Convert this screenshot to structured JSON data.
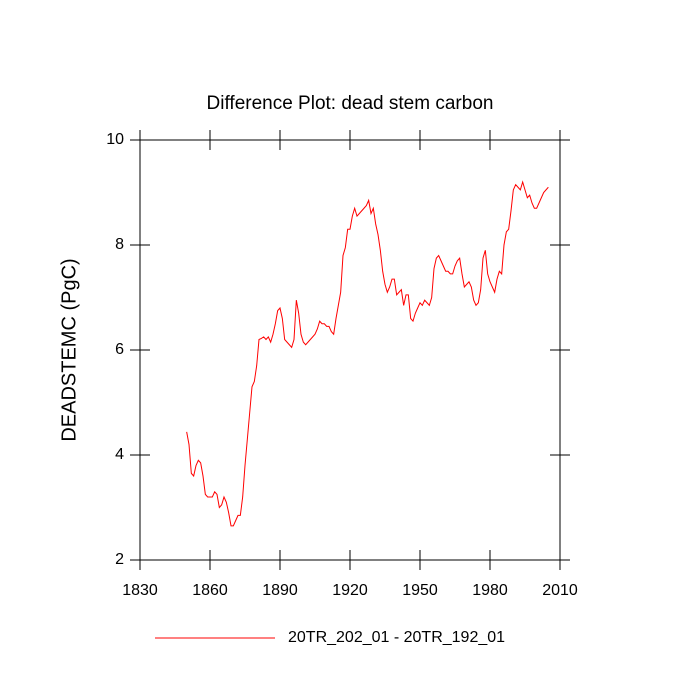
{
  "chart_data": {
    "type": "line",
    "title": "Difference Plot: dead stem carbon",
    "ylabel": "DEADSTEMC  (PgC)",
    "x": [
      1850,
      1851,
      1852,
      1853,
      1854,
      1855,
      1856,
      1857,
      1858,
      1859,
      1860,
      1861,
      1862,
      1863,
      1864,
      1865,
      1866,
      1867,
      1868,
      1869,
      1870,
      1871,
      1872,
      1873,
      1874,
      1875,
      1876,
      1877,
      1878,
      1879,
      1880,
      1881,
      1882,
      1883,
      1884,
      1885,
      1886,
      1887,
      1888,
      1889,
      1890,
      1891,
      1892,
      1893,
      1894,
      1895,
      1896,
      1897,
      1898,
      1899,
      1900,
      1901,
      1902,
      1903,
      1904,
      1905,
      1906,
      1907,
      1908,
      1909,
      1910,
      1911,
      1912,
      1913,
      1914,
      1915,
      1916,
      1917,
      1918,
      1919,
      1920,
      1921,
      1922,
      1923,
      1924,
      1925,
      1926,
      1927,
      1928,
      1929,
      1930,
      1931,
      1932,
      1933,
      1934,
      1935,
      1936,
      1937,
      1938,
      1939,
      1940,
      1941,
      1942,
      1943,
      1944,
      1945,
      1946,
      1947,
      1948,
      1949,
      1950,
      1951,
      1952,
      1953,
      1954,
      1955,
      1956,
      1957,
      1958,
      1959,
      1960,
      1961,
      1962,
      1963,
      1964,
      1965,
      1966,
      1967,
      1968,
      1969,
      1970,
      1971,
      1972,
      1973,
      1974,
      1975,
      1976,
      1977,
      1978,
      1979,
      1980,
      1981,
      1982,
      1983,
      1984,
      1985,
      1986,
      1987,
      1988,
      1989,
      1990,
      1991,
      1992,
      1993,
      1994,
      1995,
      1996,
      1997,
      1998,
      1999,
      2000,
      2001,
      2002,
      2003,
      2004,
      2005
    ],
    "series": [
      {
        "name": "20TR_202_01 - 20TR_192_01",
        "color": "#ff0000",
        "values": [
          4.44,
          4.2,
          3.65,
          3.6,
          3.8,
          3.9,
          3.85,
          3.6,
          3.25,
          3.2,
          3.2,
          3.2,
          3.3,
          3.25,
          3.0,
          3.05,
          3.2,
          3.1,
          2.9,
          2.65,
          2.65,
          2.75,
          2.85,
          2.85,
          3.2,
          3.8,
          4.3,
          4.8,
          5.3,
          5.4,
          5.7,
          6.2,
          6.22,
          6.25,
          6.2,
          6.25,
          6.15,
          6.3,
          6.5,
          6.75,
          6.8,
          6.6,
          6.2,
          6.15,
          6.1,
          6.05,
          6.2,
          6.95,
          6.7,
          6.3,
          6.15,
          6.1,
          6.15,
          6.2,
          6.25,
          6.3,
          6.4,
          6.55,
          6.5,
          6.5,
          6.45,
          6.45,
          6.35,
          6.3,
          6.6,
          6.85,
          7.1,
          7.8,
          7.95,
          8.3,
          8.3,
          8.55,
          8.7,
          8.55,
          8.6,
          8.65,
          8.7,
          8.75,
          8.85,
          8.6,
          8.7,
          8.4,
          8.2,
          7.9,
          7.5,
          7.25,
          7.1,
          7.2,
          7.35,
          7.35,
          7.05,
          7.1,
          7.15,
          6.85,
          7.05,
          7.05,
          6.6,
          6.55,
          6.7,
          6.8,
          6.9,
          6.85,
          6.95,
          6.9,
          6.85,
          7.0,
          7.55,
          7.75,
          7.8,
          7.7,
          7.6,
          7.5,
          7.5,
          7.45,
          7.45,
          7.6,
          7.7,
          7.75,
          7.45,
          7.2,
          7.25,
          7.3,
          7.2,
          6.95,
          6.85,
          6.9,
          7.15,
          7.75,
          7.9,
          7.45,
          7.3,
          7.2,
          7.1,
          7.35,
          7.5,
          7.45,
          8.0,
          8.25,
          8.3,
          8.65,
          9.05,
          9.15,
          9.1,
          9.05,
          9.2,
          9.05,
          8.9,
          8.95,
          8.8,
          8.7,
          8.7,
          8.8,
          8.9,
          9.0,
          9.05,
          9.1
        ]
      }
    ],
    "xlim": [
      1830,
      2010
    ],
    "xticks": [
      1830,
      1860,
      1890,
      1920,
      1950,
      1980,
      2010
    ],
    "ylim": [
      2,
      10
    ],
    "yticks": [
      2,
      4,
      6,
      8,
      10
    ],
    "legend": "bottom"
  }
}
